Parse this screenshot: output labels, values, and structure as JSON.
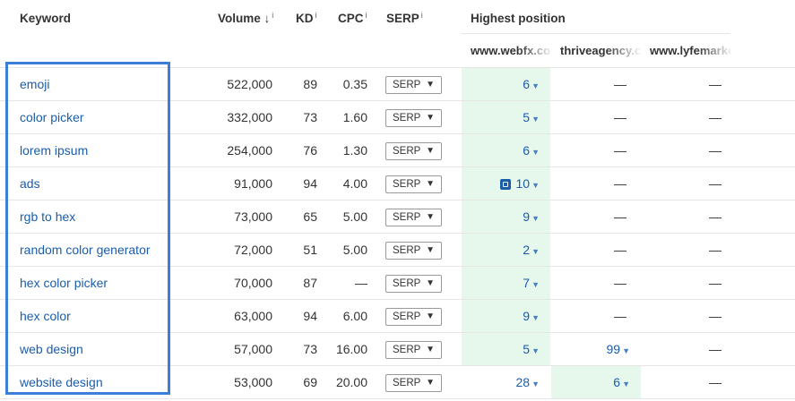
{
  "headers": {
    "keyword": "Keyword",
    "volume": "Volume",
    "volume_sort": "↓",
    "kd": "KD",
    "cpc": "CPC",
    "serp": "SERP",
    "info": "i",
    "highest_position": "Highest position"
  },
  "competitors": [
    "www.webfx.com",
    "thriveagency.com",
    "www.lyfemarketing.com"
  ],
  "serp_label": "SERP",
  "rows": [
    {
      "keyword": "emoji",
      "volume": "522,000",
      "kd": "89",
      "cpc": "0.35",
      "p1": "6",
      "p2": "—",
      "p3": "—",
      "p1_green": true,
      "p2_green": false,
      "img": false
    },
    {
      "keyword": "color picker",
      "volume": "332,000",
      "kd": "73",
      "cpc": "1.60",
      "p1": "5",
      "p2": "—",
      "p3": "—",
      "p1_green": true,
      "p2_green": false,
      "img": false
    },
    {
      "keyword": "lorem ipsum",
      "volume": "254,000",
      "kd": "76",
      "cpc": "1.30",
      "p1": "6",
      "p2": "—",
      "p3": "—",
      "p1_green": true,
      "p2_green": false,
      "img": false
    },
    {
      "keyword": "ads",
      "volume": "91,000",
      "kd": "94",
      "cpc": "4.00",
      "p1": "10",
      "p2": "—",
      "p3": "—",
      "p1_green": true,
      "p2_green": false,
      "img": true
    },
    {
      "keyword": "rgb to hex",
      "volume": "73,000",
      "kd": "65",
      "cpc": "5.00",
      "p1": "9",
      "p2": "—",
      "p3": "—",
      "p1_green": true,
      "p2_green": false,
      "img": false
    },
    {
      "keyword": "random color generator",
      "volume": "72,000",
      "kd": "51",
      "cpc": "5.00",
      "p1": "2",
      "p2": "—",
      "p3": "—",
      "p1_green": true,
      "p2_green": false,
      "img": false
    },
    {
      "keyword": "hex color picker",
      "volume": "70,000",
      "kd": "87",
      "cpc": "—",
      "p1": "7",
      "p2": "—",
      "p3": "—",
      "p1_green": true,
      "p2_green": false,
      "img": false
    },
    {
      "keyword": "hex color",
      "volume": "63,000",
      "kd": "94",
      "cpc": "6.00",
      "p1": "9",
      "p2": "—",
      "p3": "—",
      "p1_green": true,
      "p2_green": false,
      "img": false
    },
    {
      "keyword": "web design",
      "volume": "57,000",
      "kd": "73",
      "cpc": "16.00",
      "p1": "5",
      "p2": "99",
      "p3": "—",
      "p1_green": true,
      "p2_green": false,
      "img": false
    },
    {
      "keyword": "website design",
      "volume": "53,000",
      "kd": "69",
      "cpc": "20.00",
      "p1": "28",
      "p2": "6",
      "p3": "—",
      "p1_green": false,
      "p2_green": true,
      "img": false
    }
  ]
}
